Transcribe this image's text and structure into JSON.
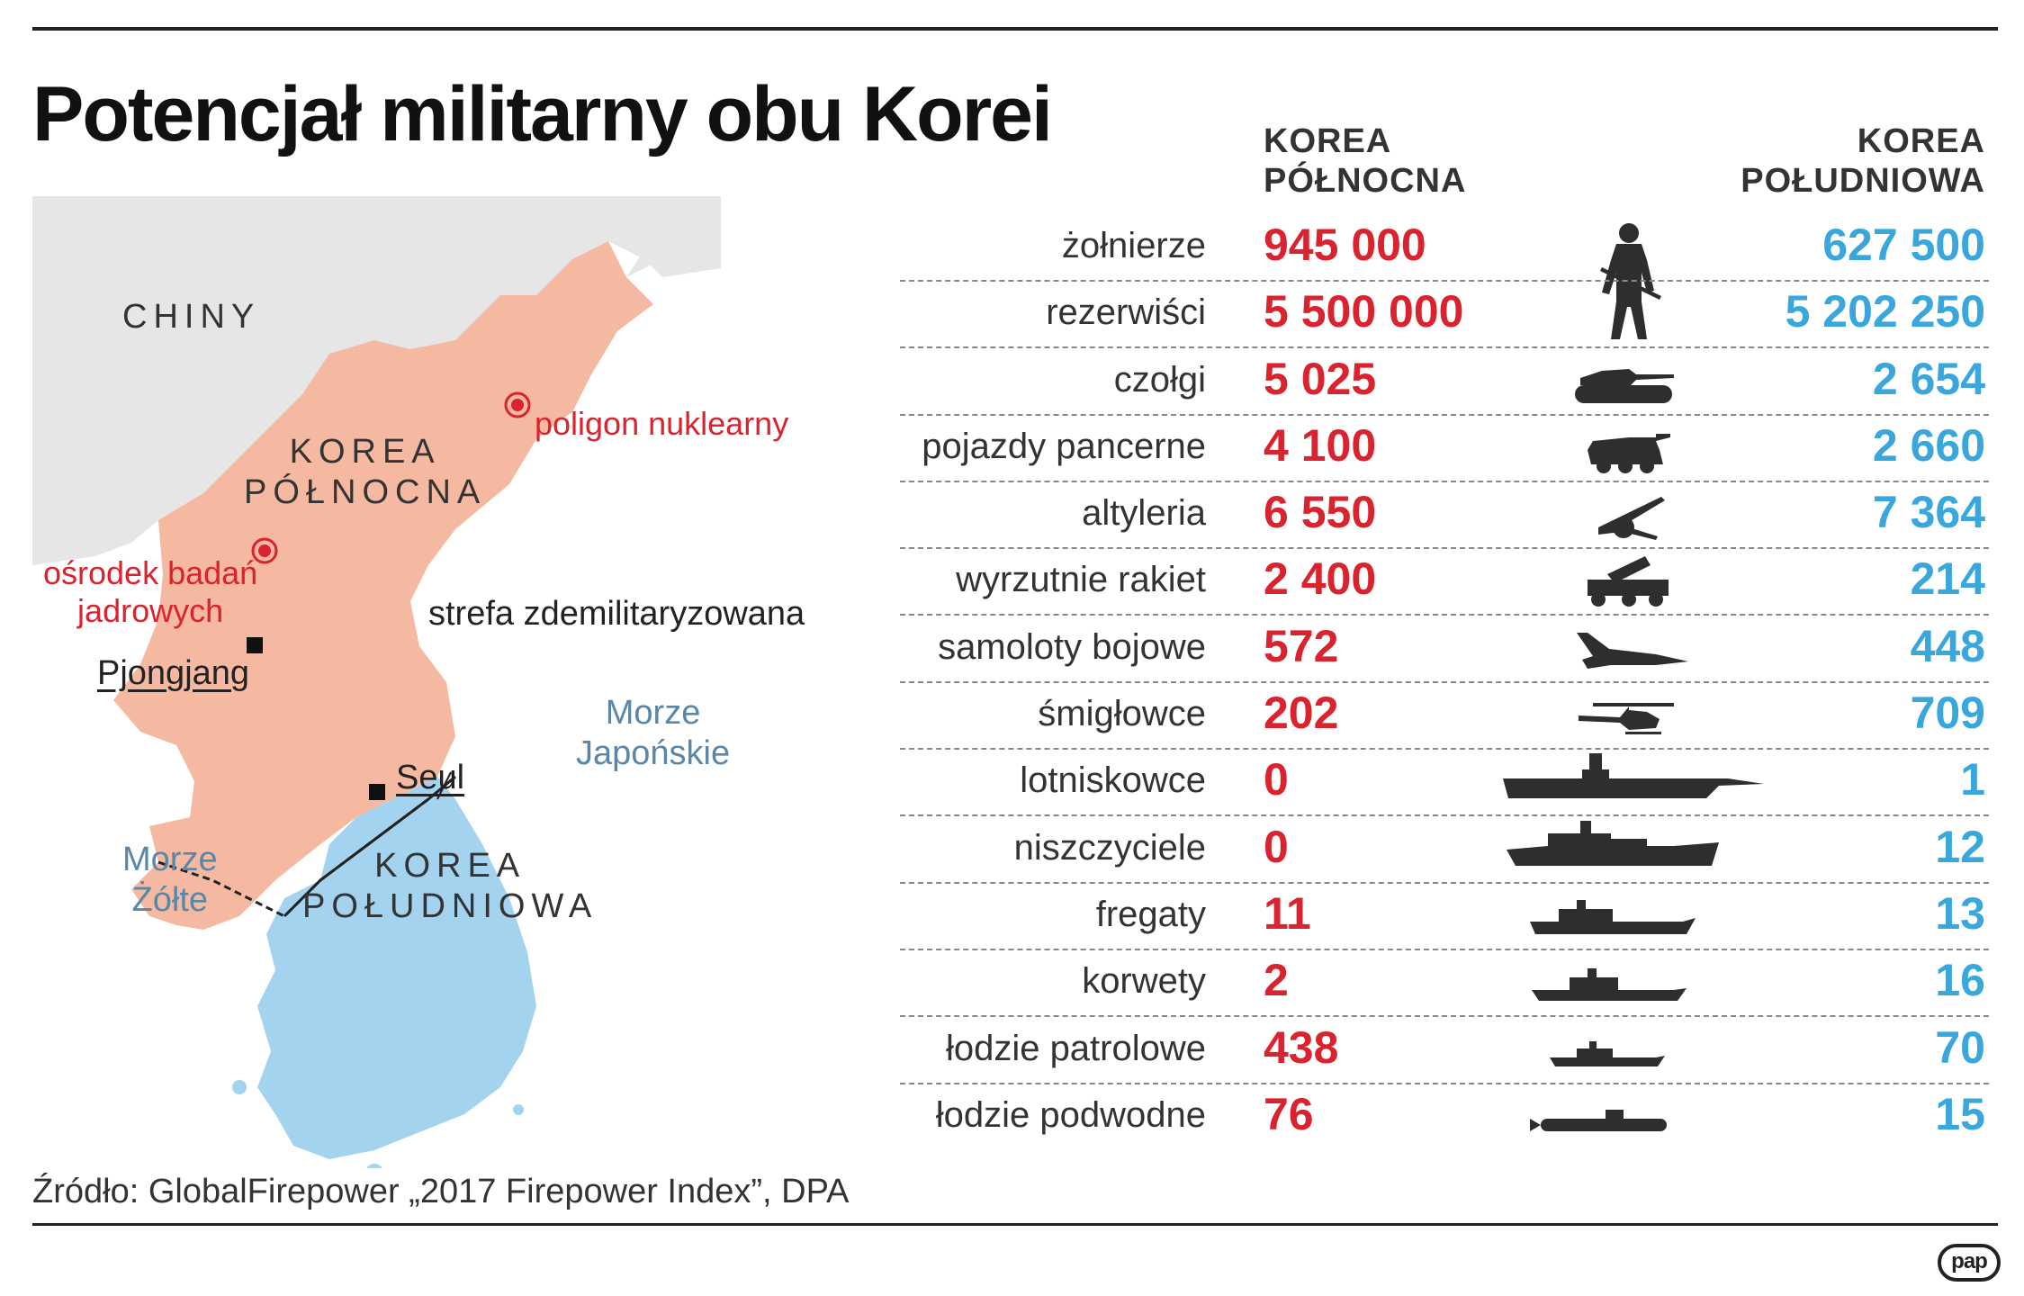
{
  "title": "Potencjał militarny obu Korei",
  "columns": {
    "north": [
      "KOREA",
      "PÓŁNOCNA"
    ],
    "south": [
      "KOREA",
      "POŁUDNIOWA"
    ]
  },
  "map": {
    "china": "CHINY",
    "north_korea": [
      "KOREA",
      "PÓŁNOCNA"
    ],
    "south_korea": [
      "KOREA",
      "POŁUDNIOWA"
    ],
    "nuclear_site": "poligon nuklearny",
    "research_center": [
      "ośrodek badań",
      "jadrowych"
    ],
    "dmz": "strefa zdemilitaryzowana",
    "pyongyang": "Pjongjang",
    "seoul": "Seul",
    "sea_japan": [
      "Morze",
      "Japońskie"
    ],
    "sea_yellow": [
      "Morze",
      "Żółte"
    ]
  },
  "rows": [
    {
      "label": "żołnierze",
      "north": "945 000",
      "south": "627 500",
      "icon": "soldier-icon"
    },
    {
      "label": "rezerwiści",
      "north": "5 500 000",
      "south": "5 202 250",
      "icon": ""
    },
    {
      "label": "czołgi",
      "north": "5 025",
      "south": "2 654",
      "icon": "tank-icon"
    },
    {
      "label": "pojazdy pancerne",
      "north": "4 100",
      "south": "2 660",
      "icon": "armored-vehicle-icon"
    },
    {
      "label": "altyleria",
      "north": "6 550",
      "south": "7 364",
      "icon": "artillery-icon"
    },
    {
      "label": "wyrzutnie rakiet",
      "north": "2 400",
      "south": "214",
      "icon": "rocket-launcher-icon"
    },
    {
      "label": "samoloty bojowe",
      "north": "572",
      "south": "448",
      "icon": "fighter-jet-icon"
    },
    {
      "label": "śmigłowce",
      "north": "202",
      "south": "709",
      "icon": "helicopter-icon"
    },
    {
      "label": "lotniskowce",
      "north": "0",
      "south": "1",
      "icon": "aircraft-carrier-icon"
    },
    {
      "label": "niszczyciele",
      "north": "0",
      "south": "12",
      "icon": "destroyer-icon"
    },
    {
      "label": "fregaty",
      "north": "11",
      "south": "13",
      "icon": "frigate-icon"
    },
    {
      "label": "korwety",
      "north": "2",
      "south": "16",
      "icon": "corvette-icon"
    },
    {
      "label": "łodzie patrolowe",
      "north": "438",
      "south": "70",
      "icon": "patrol-boat-icon"
    },
    {
      "label": "łodzie podwodne",
      "north": "76",
      "south": "15",
      "icon": "submarine-icon"
    }
  ],
  "source": "Źródło: GlobalFirepower „2017 Firepower Index”, DPA",
  "logo": "pap",
  "colors": {
    "north": "#d9232e",
    "south": "#3aa7dc",
    "north_fill": "#f5b9a1",
    "south_fill": "#a3d3ee",
    "land": "#e6e6e6"
  }
}
